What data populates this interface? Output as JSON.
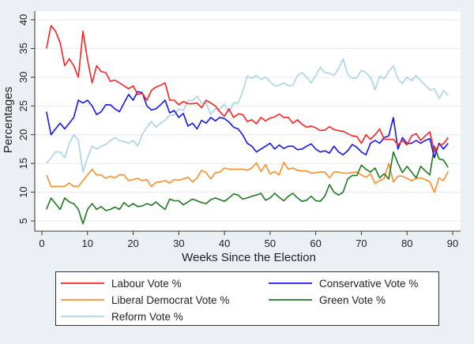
{
  "chart_data": {
    "type": "line",
    "title": "",
    "xlabel": "Weeks Since the Election",
    "ylabel": "Percentages",
    "xlim": [
      -2,
      90.5
    ],
    "ylim": [
      3,
      41
    ],
    "xticks": [
      0,
      10,
      20,
      30,
      40,
      50,
      60,
      70,
      80,
      90
    ],
    "yticks": [
      5,
      10,
      15,
      20,
      25,
      30,
      35,
      40
    ],
    "grid": true,
    "legend_placement": "bottom",
    "x": [
      1,
      2,
      3,
      4,
      5,
      6,
      7,
      8,
      9,
      10,
      11,
      12,
      13,
      14,
      15,
      16,
      17,
      18,
      19,
      20,
      21,
      22,
      23,
      24,
      25,
      26,
      27,
      28,
      29,
      30,
      31,
      32,
      33,
      34,
      35,
      36,
      37,
      38,
      39,
      40,
      41,
      42,
      43,
      44,
      45,
      46,
      47,
      48,
      49,
      50,
      51,
      52,
      53,
      54,
      55,
      56,
      57,
      58,
      59,
      60,
      61,
      62,
      63,
      64,
      65,
      66,
      67,
      68,
      69,
      70,
      71,
      72,
      73,
      74,
      75,
      76,
      77,
      78,
      79,
      80,
      81,
      82,
      83,
      84,
      85,
      86,
      87,
      88,
      89
    ],
    "series": [
      {
        "name": "Labour Vote %",
        "color": "#ff2020",
        "values": [
          35,
          39,
          38,
          36,
          32,
          33.2,
          32,
          30,
          38,
          33,
          29,
          32,
          31,
          30.8,
          29.3,
          29.5,
          29,
          28.5,
          28,
          28.5,
          27,
          27.2,
          26,
          27.7,
          28.3,
          28.6,
          29,
          26,
          26,
          25.2,
          25.8,
          25.4,
          25.4,
          25.5,
          24.7,
          26,
          25.5,
          25,
          24,
          23.2,
          24.5,
          23,
          23.6,
          23.5,
          22.3,
          22.6,
          21.9,
          23,
          22.4,
          22.9,
          23.1,
          23.6,
          23,
          23,
          22,
          22.6,
          21.8,
          21.3,
          21.5,
          21.2,
          20.7,
          20.8,
          21.4,
          20.9,
          20.7,
          20.6,
          20.2,
          19.8,
          19.7,
          18.5,
          20,
          19.2,
          20,
          21,
          19.2,
          19.2,
          19.2,
          18.2,
          19,
          18.2,
          19.8,
          20.2,
          19,
          19.8,
          20.5,
          17,
          18.2,
          18.4,
          19.5
        ]
      },
      {
        "name": "Conservative Vote %",
        "color": "#1515f0",
        "values": [
          24,
          20,
          21,
          22,
          21,
          22,
          23,
          26,
          25.5,
          26,
          25,
          23.5,
          24,
          25.2,
          25.2,
          24.5,
          24,
          25.5,
          27,
          26,
          27.5,
          27.3,
          25,
          24.3,
          24.5,
          25.2,
          26,
          23.8,
          24.2,
          23,
          23.7,
          21.5,
          22,
          21,
          22.5,
          22,
          23,
          22.4,
          23,
          22.8,
          22.2,
          21.3,
          21,
          20,
          18.5,
          18,
          17,
          17.5,
          18,
          18.5,
          17.5,
          18.2,
          17.6,
          18,
          18,
          17.4,
          17.5,
          18,
          18.4,
          17.5,
          17,
          17.2,
          16.8,
          18,
          17,
          16.5,
          17.2,
          18.3,
          17.8,
          17,
          16.5,
          18.5,
          19,
          18.5,
          19.5,
          19.8,
          23,
          17.5,
          19.5,
          18.5,
          18.5,
          19,
          18.5,
          19,
          19.3,
          16,
          18.5,
          17.5,
          18.5
        ]
      },
      {
        "name": "Liberal Democrat Vote %",
        "color": "#ff8c2a",
        "values": [
          13,
          11,
          11,
          11,
          11,
          11.6,
          11,
          11,
          12,
          13,
          14,
          13,
          13,
          12.4,
          12.8,
          12.5,
          13,
          13,
          12,
          12.2,
          12.4,
          12,
          12.2,
          11,
          11.7,
          11.8,
          12,
          11.6,
          12.2,
          12.1,
          12.3,
          12.6,
          11.8,
          12.5,
          13.8,
          13.4,
          12.3,
          13.4,
          13.5,
          14.2,
          14,
          14,
          14,
          14,
          13.8,
          14.2,
          15.1,
          13.6,
          14.8,
          13.2,
          13.6,
          13,
          15.2,
          14,
          14.2,
          13.8,
          13.7,
          13.7,
          13.3,
          13.4,
          13.5,
          13.5,
          12.5,
          13.5,
          13.5,
          13.3,
          13.3,
          13.4,
          13.5,
          13,
          12.6,
          13.2,
          11.5,
          12,
          12.4,
          15,
          11.8,
          12.8,
          12.8,
          12.4,
          12,
          12.4,
          12.5,
          12.2,
          11.8,
          10,
          12.5,
          12,
          13.6
        ]
      },
      {
        "name": "Green Vote %",
        "color": "#1e7a1e",
        "values": [
          7,
          9,
          8,
          7,
          9,
          8.3,
          8,
          7,
          4.5,
          7,
          8,
          7,
          7.5,
          6.8,
          7,
          7.4,
          7,
          8.2,
          7.5,
          8,
          7.5,
          7.6,
          8,
          7.7,
          8.3,
          7.6,
          7,
          8.8,
          8.5,
          8.5,
          7.8,
          8.3,
          8.8,
          8.5,
          8.2,
          8,
          8.7,
          9,
          8.7,
          8.4,
          9,
          9.7,
          9.5,
          8.8,
          9,
          9.3,
          9.5,
          9.8,
          8.6,
          9,
          9.8,
          9.1,
          8.5,
          9.3,
          9.8,
          9,
          8.4,
          8.6,
          9.3,
          8.5,
          8.4,
          9.3,
          11.3,
          10,
          9.5,
          10,
          12.3,
          12.9,
          12.9,
          14.7,
          14,
          13.5,
          14.2,
          12.5,
          13.2,
          12.3,
          17,
          15,
          13.4,
          14.5,
          13.5,
          12.5,
          14.5,
          13.7,
          13,
          18,
          15.8,
          15.6,
          14.3
        ]
      },
      {
        "name": "Reform Vote %",
        "color": "#a8d4e6",
        "values": [
          15,
          16,
          17,
          17,
          16,
          18.5,
          20,
          19,
          13.5,
          16,
          18,
          17.5,
          18,
          18.3,
          19,
          19.5,
          19,
          18.8,
          18.5,
          19,
          18,
          20,
          21.3,
          22.3,
          21.3,
          22,
          22.5,
          23.4,
          23.4,
          24.5,
          24.2,
          26,
          25.9,
          26.7,
          25.5,
          25.5,
          23.5,
          24.5,
          24.5,
          25.3,
          24,
          25.5,
          25.5,
          27.5,
          30.2,
          29.8,
          30.3,
          29.6,
          30,
          29.2,
          28.5,
          28.6,
          29,
          28.5,
          28.6,
          30.3,
          30.8,
          30,
          29,
          30.3,
          31.7,
          30.8,
          30.7,
          30.3,
          31.5,
          33.2,
          30.5,
          29.8,
          29.9,
          31.2,
          30.8,
          30,
          27.8,
          30.2,
          29.7,
          31,
          32,
          29.7,
          28.9,
          30,
          29.4,
          30.3,
          29.4,
          28.6,
          27.8,
          28,
          26.3,
          27.7,
          26.8
        ]
      }
    ]
  }
}
